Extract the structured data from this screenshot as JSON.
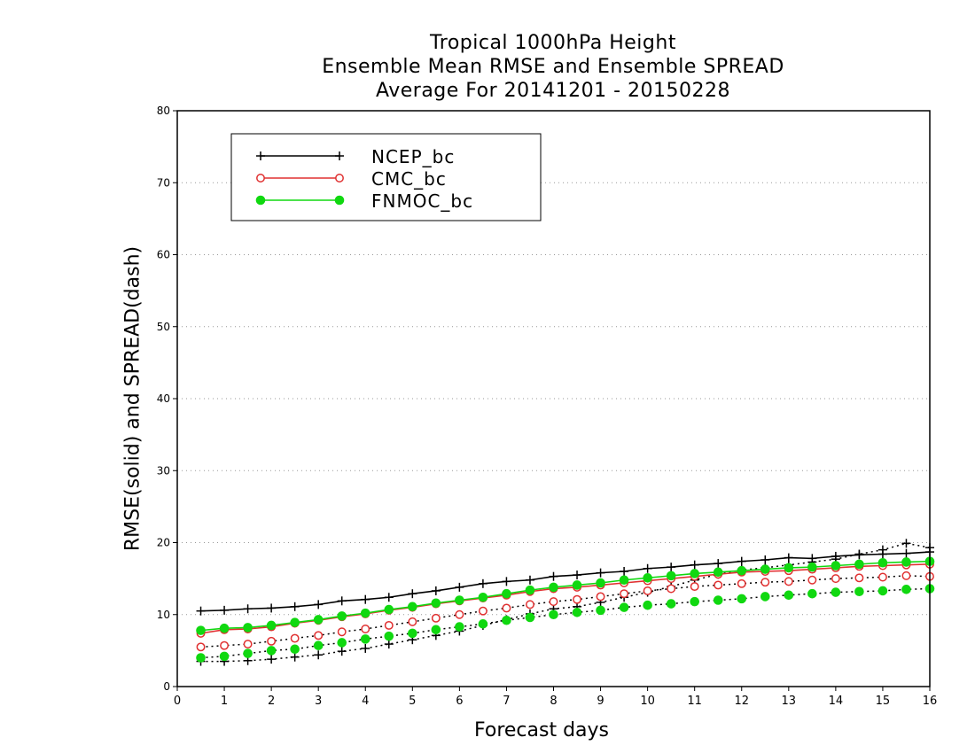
{
  "chart_data": {
    "type": "line",
    "title": [
      "Tropical 1000hPa Height",
      "Ensemble Mean RMSE and Ensemble SPREAD",
      "Average For 20141201 - 20150228"
    ],
    "xlabel": "Forecast days",
    "ylabel": "RMSE(solid) and SPREAD(dash)",
    "xlim": [
      0,
      16
    ],
    "ylim": [
      0,
      80
    ],
    "xticks": [
      "0",
      "1",
      "2",
      "3",
      "4",
      "5",
      "6",
      "7",
      "8",
      "9",
      "10",
      "11",
      "12",
      "13",
      "14",
      "15",
      "16"
    ],
    "yticks": [
      "0",
      "10",
      "20",
      "30",
      "40",
      "50",
      "60",
      "70",
      "80"
    ],
    "grid": "horizontal dotted",
    "legend_position": "top-left",
    "x": [
      0.5,
      1,
      1.5,
      2,
      2.5,
      3,
      3.5,
      4,
      4.5,
      5,
      5.5,
      6,
      6.5,
      7,
      7.5,
      8,
      8.5,
      9,
      9.5,
      10,
      10.5,
      11,
      11.5,
      12,
      12.5,
      13,
      13.5,
      14,
      14.5,
      15,
      15.5,
      16
    ],
    "series": [
      {
        "name": "NCEP_bc",
        "color": "#000000",
        "marker": "plus",
        "rmse": [
          10.5,
          10.6,
          10.8,
          10.9,
          11.1,
          11.4,
          11.9,
          12.1,
          12.4,
          12.9,
          13.3,
          13.8,
          14.3,
          14.6,
          14.8,
          15.3,
          15.5,
          15.8,
          16.0,
          16.4,
          16.6,
          16.9,
          17.1,
          17.4,
          17.6,
          17.9,
          17.8,
          18.1,
          18.3,
          18.4,
          18.5,
          18.7
        ],
        "spread": [
          3.5,
          3.5,
          3.6,
          3.8,
          4.1,
          4.4,
          4.9,
          5.3,
          5.9,
          6.5,
          7.1,
          7.7,
          8.5,
          9.3,
          10.1,
          10.8,
          11.1,
          11.7,
          12.4,
          13.1,
          13.9,
          14.8,
          15.6,
          16.2,
          16.5,
          16.9,
          17.3,
          17.7,
          18.4,
          19.0,
          19.9,
          19.3
        ]
      },
      {
        "name": "CMC_bc",
        "color": "#e03030",
        "marker": "open-circle",
        "rmse": [
          7.4,
          7.9,
          8.0,
          8.3,
          8.8,
          9.2,
          9.7,
          10.1,
          10.6,
          11.0,
          11.5,
          11.9,
          12.3,
          12.7,
          13.2,
          13.6,
          13.8,
          14.1,
          14.4,
          14.7,
          15.0,
          15.3,
          15.6,
          15.9,
          16.0,
          16.1,
          16.3,
          16.5,
          16.7,
          16.8,
          16.9,
          17.0
        ],
        "spread": [
          5.5,
          5.7,
          5.9,
          6.3,
          6.7,
          7.1,
          7.6,
          8.0,
          8.5,
          9.0,
          9.5,
          10.0,
          10.5,
          10.9,
          11.4,
          11.8,
          12.1,
          12.5,
          12.9,
          13.3,
          13.6,
          13.9,
          14.1,
          14.3,
          14.5,
          14.6,
          14.8,
          15.0,
          15.1,
          15.2,
          15.4,
          15.3
        ]
      },
      {
        "name": "FNMOC_bc",
        "color": "#10d810",
        "marker": "filled-circle",
        "rmse": [
          7.8,
          8.1,
          8.2,
          8.5,
          8.9,
          9.3,
          9.8,
          10.2,
          10.7,
          11.1,
          11.6,
          12.0,
          12.4,
          12.9,
          13.4,
          13.8,
          14.1,
          14.4,
          14.8,
          15.1,
          15.4,
          15.7,
          15.9,
          16.1,
          16.3,
          16.5,
          16.6,
          16.8,
          17.0,
          17.2,
          17.3,
          17.4
        ],
        "spread": [
          4.0,
          4.2,
          4.6,
          5.0,
          5.2,
          5.7,
          6.1,
          6.6,
          7.0,
          7.4,
          7.9,
          8.3,
          8.7,
          9.2,
          9.6,
          10.0,
          10.3,
          10.6,
          11.0,
          11.3,
          11.5,
          11.8,
          12.0,
          12.2,
          12.5,
          12.7,
          12.9,
          13.1,
          13.2,
          13.3,
          13.5,
          13.6
        ]
      }
    ]
  }
}
